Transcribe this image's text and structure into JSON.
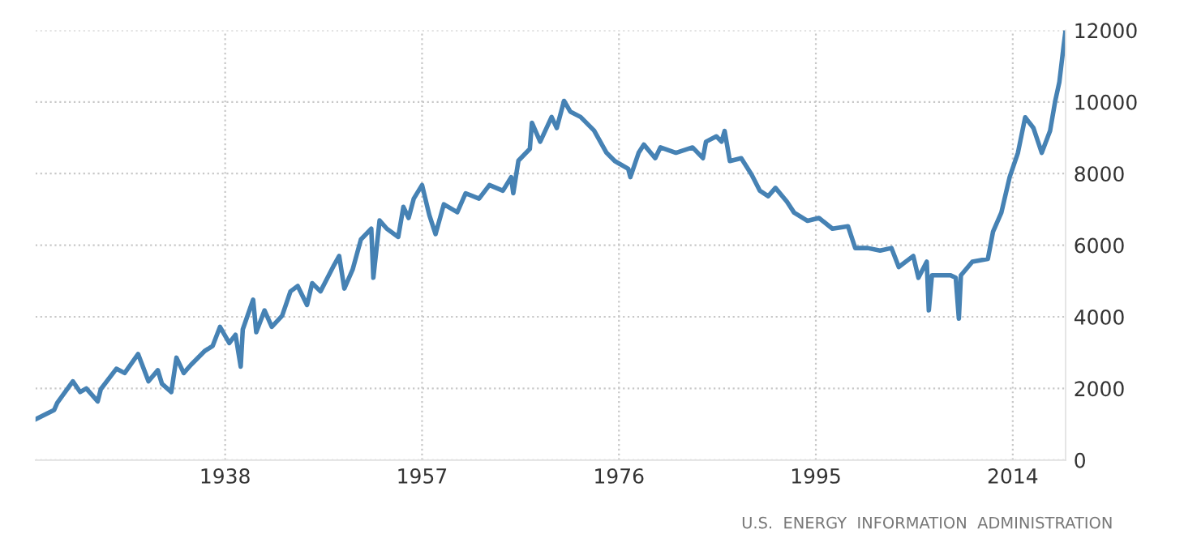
{
  "chart_data": {
    "type": "line",
    "series": [
      {
        "color": "#4682b4",
        "x": [
          1919.7,
          1921.5,
          1921.8,
          1923.3,
          1924,
          1924.6,
          1925.7,
          1926,
          1927.5,
          1928.3,
          1929.6,
          1930.6,
          1931.5,
          1931.9,
          1932.8,
          1933.3,
          1934,
          1934.7,
          1936,
          1936.8,
          1937.5,
          1938.4,
          1939,
          1939.5,
          1939.7,
          1940.7,
          1941,
          1941.8,
          1942.5,
          1943.5,
          1944.3,
          1945,
          1945.9,
          1946.4,
          1947.2,
          1948.5,
          1949,
          1949.5,
          1950.3,
          1951.1,
          1952.1,
          1952.3,
          1952.9,
          1953.6,
          1954.7,
          1955.2,
          1955.7,
          1956.2,
          1957,
          1957.7,
          1958.3,
          1959.1,
          1960.4,
          1961.2,
          1962.5,
          1963.5,
          1964.8,
          1965.6,
          1965.8,
          1966.3,
          1967.4,
          1967.6,
          1968.4,
          1969.5,
          1970,
          1970.7,
          1971.3,
          1972.3,
          1973.6,
          1974.8,
          1975.6,
          1976.9,
          1977.1,
          1977.9,
          1978.4,
          1979.5,
          1980,
          1981.5,
          1983.1,
          1984.1,
          1984.4,
          1985.4,
          1985.9,
          1986.2,
          1986.7,
          1987.8,
          1988.8,
          1989.6,
          1990.4,
          1991.1,
          1992.2,
          1992.9,
          1994.2,
          1995.3,
          1996.6,
          1998.1,
          1998.8,
          2000,
          2001.2,
          2002.3,
          2003,
          2004.4,
          2004.9,
          2005.7,
          2005.9,
          2006.2,
          2008,
          2008.5,
          2008.8,
          2009,
          2010.1,
          2011.6,
          2012.1,
          2012.9,
          2013.7,
          2014.5,
          2015.2,
          2016,
          2016.8,
          2017.6,
          2018.1,
          2018.5,
          2018.9,
          2019.1
        ],
        "values": [
          1140,
          1400,
          1600,
          2200,
          1900,
          2000,
          1640,
          1980,
          2550,
          2430,
          2960,
          2200,
          2510,
          2130,
          1900,
          2860,
          2430,
          2660,
          3040,
          3190,
          3720,
          3270,
          3500,
          2610,
          3650,
          4480,
          3570,
          4180,
          3720,
          4030,
          4710,
          4860,
          4330,
          4940,
          4710,
          5440,
          5700,
          4790,
          5320,
          6160,
          6460,
          5090,
          6690,
          6460,
          6230,
          7070,
          6760,
          7300,
          7680,
          6840,
          6310,
          7140,
          6920,
          7450,
          7300,
          7680,
          7520,
          7900,
          7450,
          8360,
          8690,
          9420,
          8890,
          9580,
          9270,
          10030,
          9730,
          9580,
          9200,
          8580,
          8350,
          8130,
          7900,
          8580,
          8810,
          8430,
          8730,
          8580,
          8730,
          8430,
          8890,
          9040,
          8890,
          9190,
          8350,
          8430,
          7970,
          7520,
          7370,
          7600,
          7220,
          6910,
          6680,
          6760,
          6460,
          6530,
          5920,
          5920,
          5850,
          5920,
          5390,
          5700,
          5090,
          5540,
          4180,
          5160,
          5160,
          5090,
          3950,
          5160,
          5540,
          5620,
          6380,
          6910,
          7900,
          8580,
          9570,
          9270,
          8580,
          9190,
          10030,
          10560,
          11540,
          12000
        ]
      }
    ],
    "xlim": [
      1919.7,
      2019.1
    ],
    "xticks": [
      1938,
      1957,
      1976,
      1995,
      2014
    ],
    "ylim": [
      0,
      12000
    ],
    "yticks": [
      0,
      2000,
      4000,
      6000,
      8000,
      10000,
      12000
    ],
    "grid": true,
    "line_style": "solid",
    "annotations": [
      "U.S.  ENERGY  INFORMATION  ADMINISTRATION"
    ]
  }
}
